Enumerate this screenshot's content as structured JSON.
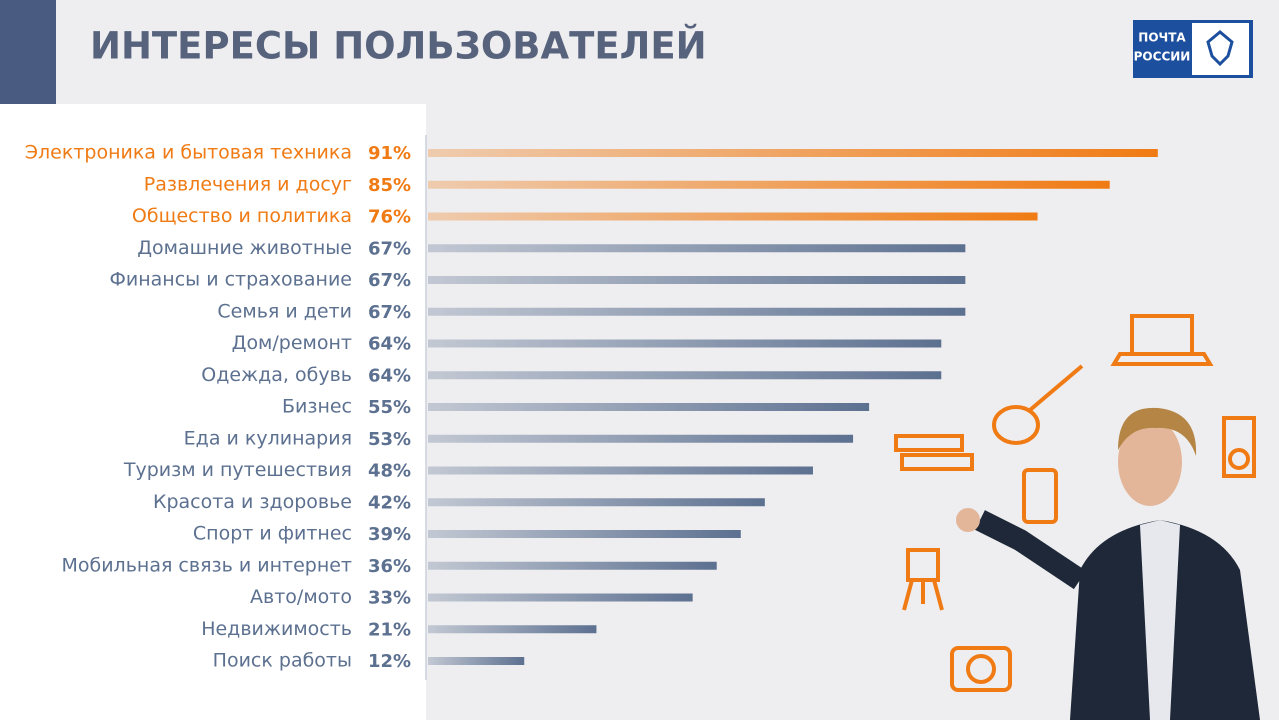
{
  "chart_data": {
    "type": "bar",
    "orientation": "horizontal",
    "title": "ИНТЕРЕСЫ ПОЛЬЗОВАТЕЛЕЙ",
    "logo_text": [
      "ПОЧТА",
      "РОССИИ"
    ],
    "categories": [
      "Электроника  и бытовая техника",
      "Развлечения и досуг",
      "Общество и политика",
      "Домашние животные",
      "Финансы и страхование",
      "Семья и дети",
      "Дом/ремонт",
      "Одежда, обувь",
      "Бизнес",
      "Еда и кулинария",
      "Туризм и путешествия",
      "Красота и здоровье",
      "Спорт и фитнес",
      "Мобильная связь и интернет",
      "Авто/мото",
      "Недвижимость",
      "Поиск работы"
    ],
    "values": [
      91,
      85,
      76,
      67,
      67,
      67,
      64,
      64,
      55,
      53,
      48,
      42,
      39,
      36,
      33,
      21,
      12
    ],
    "value_labels": [
      "91%",
      "85%",
      "76%",
      "67%",
      "67%",
      "67%",
      "64%",
      "64%",
      "55%",
      "53%",
      "48%",
      "42%",
      "39%",
      "36%",
      "33%",
      "21%",
      "12%"
    ],
    "colors": [
      "#f07b14",
      "#f07b14",
      "#f07b14",
      "#5c7090",
      "#5c7090",
      "#5c7090",
      "#5c7090",
      "#5c7090",
      "#5c7090",
      "#5c7090",
      "#5c7090",
      "#5c7090",
      "#5c7090",
      "#5c7090",
      "#5c7090",
      "#5c7090",
      "#5c7090"
    ],
    "xlim": [
      0,
      100
    ]
  }
}
